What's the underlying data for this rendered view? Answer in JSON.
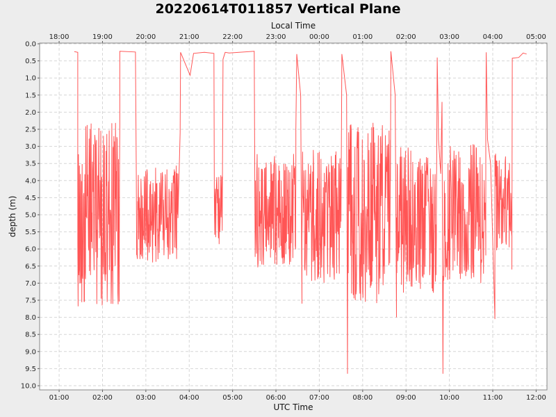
{
  "chart_data": {
    "type": "line",
    "title": "20220614T011857 Vertical Plane",
    "xlabel": "UTC Time",
    "x2label": "Local Time",
    "ylabel": "depth (m)",
    "y_inverted": true,
    "ylim": [
      0.0,
      10.0
    ],
    "yticks": [
      "0.0",
      "0.5",
      "1.0",
      "1.5",
      "2.0",
      "2.5",
      "3.0",
      "3.5",
      "4.0",
      "4.5",
      "5.0",
      "5.5",
      "6.0",
      "6.5",
      "7.0",
      "7.5",
      "8.0",
      "8.5",
      "9.0",
      "9.5",
      "10.0"
    ],
    "xlim_utc_hours": [
      0.55,
      12.25
    ],
    "utc_ticks": [
      "01:00",
      "02:00",
      "03:00",
      "04:00",
      "05:00",
      "06:00",
      "07:00",
      "08:00",
      "09:00",
      "10:00",
      "11:00",
      "12:00"
    ],
    "local_ticks": [
      "18:00",
      "19:00",
      "20:00",
      "21:00",
      "22:00",
      "23:00",
      "00:00",
      "01:00",
      "02:00",
      "03:00",
      "04:00",
      "05:00"
    ],
    "grid": true,
    "series_color": "#ff5555",
    "anchor_points_utc_hours_depth_m": [
      [
        1.35,
        0.23
      ],
      [
        1.42,
        0.25
      ],
      [
        1.43,
        0.95
      ],
      [
        1.45,
        1.7
      ],
      [
        1.47,
        7.8
      ],
      [
        2.42,
        0.22
      ],
      [
        2.75,
        0.23
      ],
      [
        2.78,
        1.2
      ],
      [
        2.8,
        7.0
      ],
      [
        2.97,
        7.2
      ],
      [
        3.75,
        6.1
      ],
      [
        3.8,
        0.25
      ],
      [
        4.02,
        0.92
      ],
      [
        4.1,
        0.28
      ],
      [
        4.35,
        0.25
      ],
      [
        4.57,
        0.28
      ],
      [
        4.58,
        7.4
      ],
      [
        4.76,
        4.5
      ],
      [
        4.78,
        0.45
      ],
      [
        4.83,
        0.25
      ],
      [
        4.92,
        0.27
      ],
      [
        5.5,
        0.22
      ],
      [
        5.52,
        7.2
      ],
      [
        6.48,
        0.3
      ],
      [
        6.57,
        1.5
      ],
      [
        6.6,
        7.65
      ],
      [
        7.52,
        0.3
      ],
      [
        7.63,
        1.5
      ],
      [
        7.65,
        9.65
      ],
      [
        7.75,
        7.7
      ],
      [
        8.65,
        0.22
      ],
      [
        8.75,
        1.5
      ],
      [
        8.78,
        8.0
      ],
      [
        8.9,
        7.4
      ],
      [
        9.72,
        0.4
      ],
      [
        9.8,
        8.0
      ],
      [
        9.83,
        1.7
      ],
      [
        9.85,
        9.65
      ],
      [
        10.85,
        0.25
      ],
      [
        11.05,
        8.05
      ],
      [
        11.45,
        0.42
      ],
      [
        11.47,
        6.6
      ],
      [
        11.6,
        0.4
      ],
      [
        11.7,
        0.27
      ],
      [
        11.78,
        0.3
      ]
    ]
  }
}
